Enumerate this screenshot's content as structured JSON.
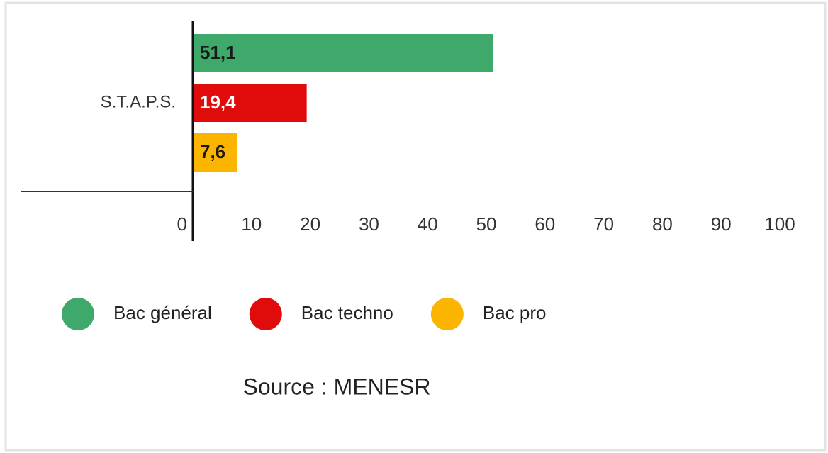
{
  "chart_data": {
    "type": "hbar",
    "categories": [
      "S.T.A.P.S."
    ],
    "series": [
      {
        "name": "Bac général",
        "color": "#3ea96b",
        "label_color": "#1a1a1a",
        "values": [
          51.1
        ],
        "value_labels": [
          "51,1"
        ]
      },
      {
        "name": "Bac techno",
        "color": "#e00b0b",
        "label_color": "#ffffff",
        "values": [
          19.4
        ],
        "value_labels": [
          "19,4"
        ]
      },
      {
        "name": "Bac pro",
        "color": "#fbb500",
        "label_color": "#1a1a1a",
        "values": [
          7.6
        ],
        "value_labels": [
          "7,6"
        ]
      }
    ],
    "xlim": [
      0,
      100
    ],
    "xticks": [
      0,
      10,
      20,
      30,
      40,
      50,
      60,
      70,
      80,
      90,
      100
    ],
    "legend": "bottom",
    "source": "Source : MENESR"
  }
}
